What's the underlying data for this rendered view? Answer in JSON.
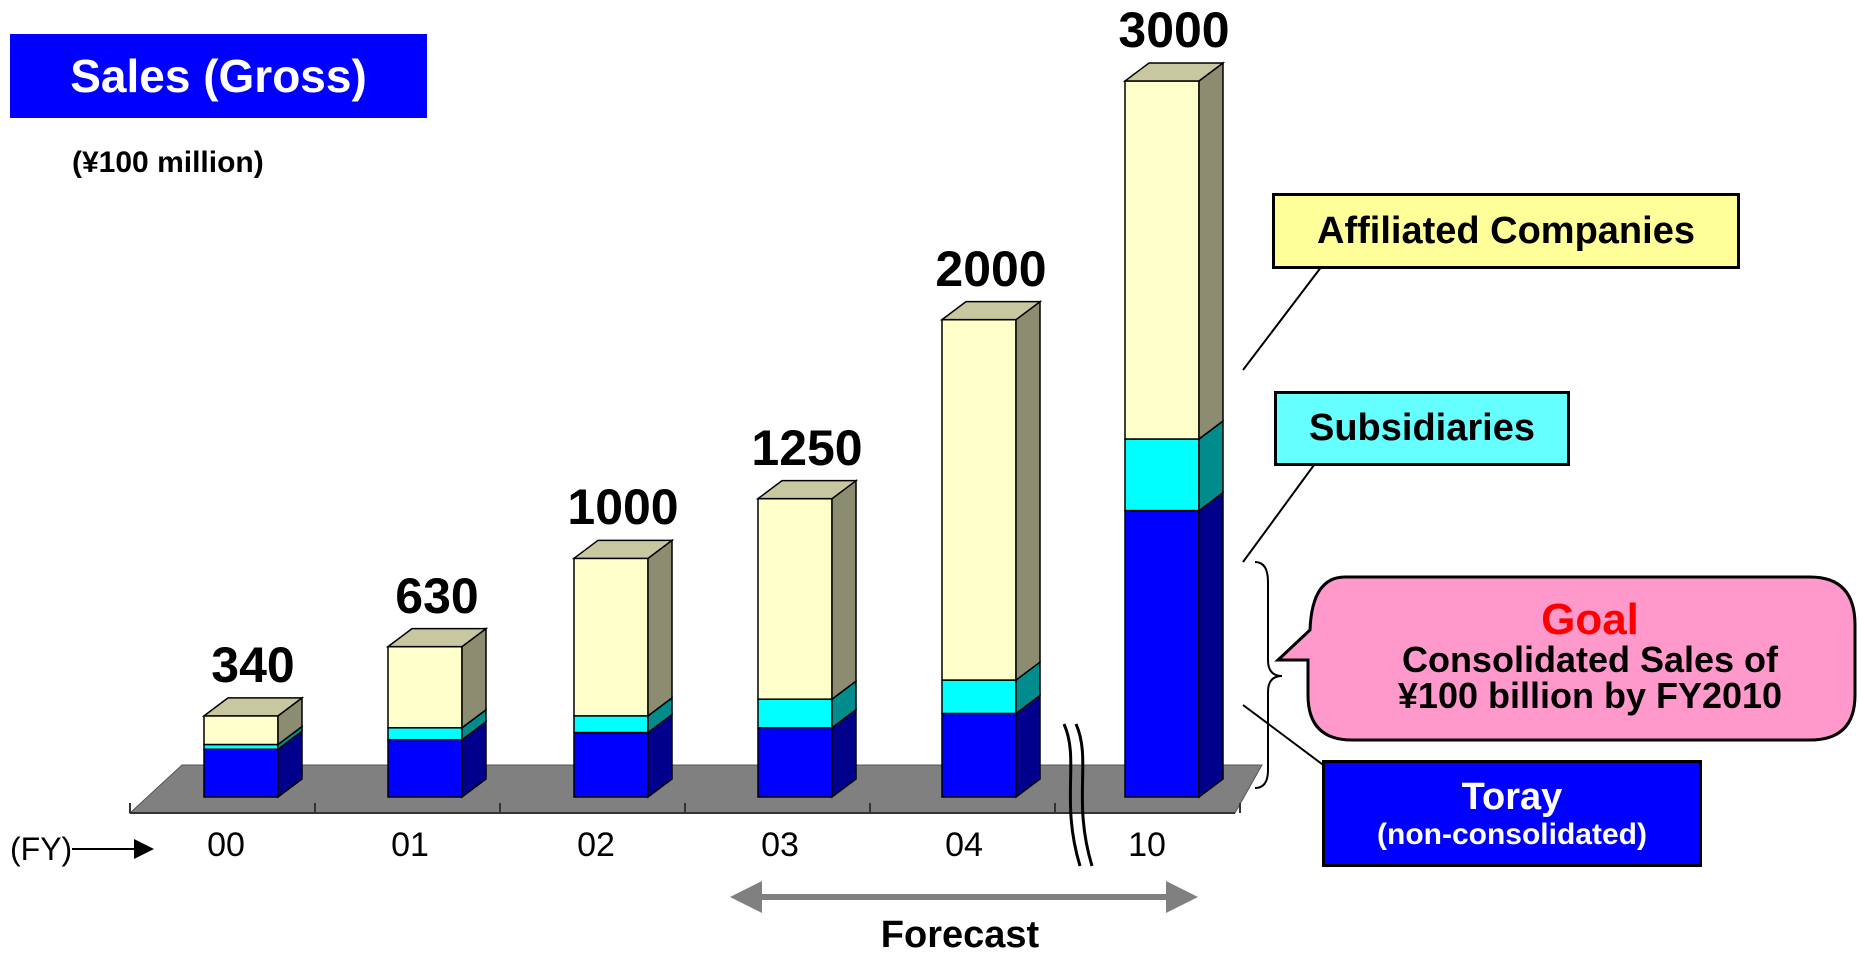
{
  "title": "Sales (Gross)",
  "unit_label": "(¥100 million)",
  "fy_label": "(FY)",
  "chart_data": {
    "type": "bar",
    "stacked": true,
    "categories": [
      "00",
      "01",
      "02",
      "03",
      "04",
      "10"
    ],
    "totals": [
      340,
      630,
      1000,
      1250,
      2000,
      3000
    ],
    "series": [
      {
        "name": "Toray (non-consolidated)",
        "color": "#0000ff",
        "values": [
          200,
          240,
          270,
          290,
          350,
          1200
        ]
      },
      {
        "name": "Subsidiaries",
        "color": "#00ffff",
        "values": [
          20,
          50,
          70,
          120,
          140,
          300
        ]
      },
      {
        "name": "Affiliated Companies",
        "color": "#ffffcc",
        "values": [
          120,
          340,
          660,
          840,
          1510,
          1500
        ]
      }
    ],
    "ylim": [
      0,
      3000
    ],
    "axis_break_before_category": "10",
    "legend_placement": "right"
  },
  "legend": {
    "affiliated": "Affiliated Companies",
    "subsidiaries": "Subsidiaries",
    "toray_line1": "Toray",
    "toray_line2": "(non-consolidated)"
  },
  "goal": {
    "title": "Goal",
    "line1": "Consolidated Sales of",
    "line2": "¥100 billion by FY2010"
  },
  "forecast_label": "Forecast",
  "colors": {
    "toray": "#0000ff",
    "subsidiaries": "#00ffff",
    "affiliated": "#ffffcc",
    "goal_fill": "#ff99cc",
    "title_fill": "#0000ff",
    "floor": "#808080"
  }
}
